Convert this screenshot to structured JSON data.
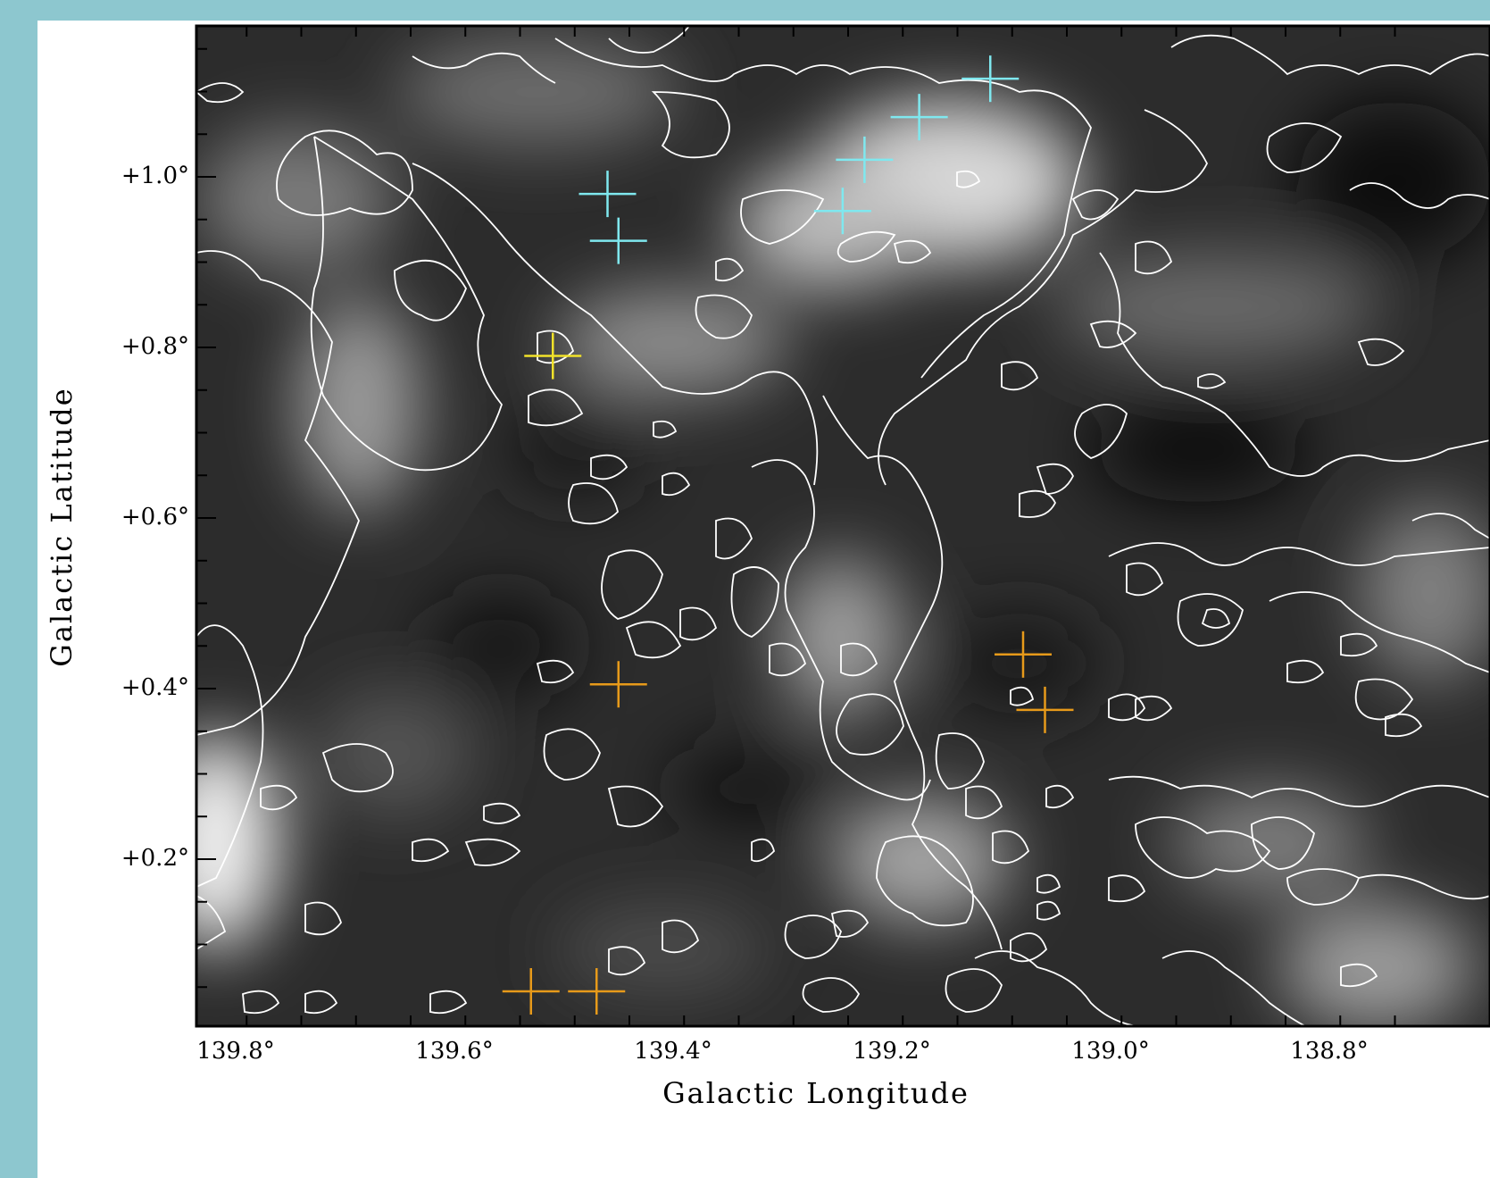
{
  "figure": {
    "x_axis": {
      "label": "Galactic Longitude",
      "ticks": [
        {
          "value": 139.8,
          "label": "139.8°"
        },
        {
          "value": 139.6,
          "label": "139.6°"
        },
        {
          "value": 139.4,
          "label": "139.4°"
        },
        {
          "value": 139.2,
          "label": "139.2°"
        },
        {
          "value": 139.0,
          "label": "139.0°"
        },
        {
          "value": 138.8,
          "label": "138.8°"
        }
      ],
      "direction": "decreasing-to-right"
    },
    "y_axis": {
      "label": "Galactic Latitude",
      "ticks": [
        {
          "value": 1.0,
          "label": "+1.0°"
        },
        {
          "value": 0.8,
          "label": "+0.8°"
        },
        {
          "value": 0.6,
          "label": "+0.6°"
        },
        {
          "value": 0.4,
          "label": "+0.4°"
        },
        {
          "value": 0.2,
          "label": "+0.2°"
        }
      ]
    },
    "colors": {
      "cyan_markers": "#7fe8ef",
      "yellow_markers": "#f2e22a",
      "orange_markers": "#e79a1a",
      "contours": "#ffffff",
      "background_frame": "#8dc7cf"
    },
    "markers": [
      {
        "group": "cyan",
        "l": 139.11,
        "b": 1.115
      },
      {
        "group": "cyan",
        "l": 139.175,
        "b": 1.07
      },
      {
        "group": "cyan",
        "l": 139.225,
        "b": 1.02
      },
      {
        "group": "cyan",
        "l": 139.245,
        "b": 0.96
      },
      {
        "group": "cyan",
        "l": 139.46,
        "b": 0.98
      },
      {
        "group": "cyan",
        "l": 139.45,
        "b": 0.925
      },
      {
        "group": "yellow",
        "l": 139.51,
        "b": 0.79
      },
      {
        "group": "orange",
        "l": 139.45,
        "b": 0.405
      },
      {
        "group": "orange",
        "l": 139.08,
        "b": 0.44
      },
      {
        "group": "orange",
        "l": 139.06,
        "b": 0.375
      },
      {
        "group": "orange",
        "l": 139.53,
        "b": 0.045
      },
      {
        "group": "orange",
        "l": 139.47,
        "b": 0.045
      }
    ]
  }
}
